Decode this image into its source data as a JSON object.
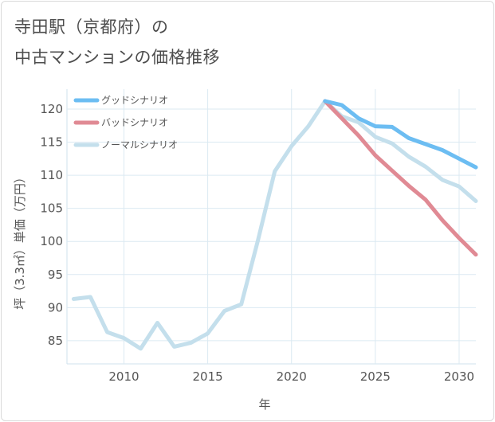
{
  "title_line1": "寺田駅（京都府）の",
  "title_line2": "中古マンションの価格推移",
  "chart_data": {
    "type": "line",
    "xlabel": "年",
    "ylabel": "坪（3.3㎡）単価（万円）",
    "xlim": [
      2006.6,
      2031
    ],
    "ylim": [
      81.5,
      123
    ],
    "xticks": [
      2010,
      2015,
      2020,
      2025,
      2030
    ],
    "yticks": [
      85,
      90,
      95,
      100,
      105,
      110,
      115,
      120
    ],
    "grid": true,
    "legend_position": "top-left",
    "series": [
      {
        "name": "グッドシナリオ",
        "color": "#6cbdf2",
        "x": [
          2022,
          2023,
          2024,
          2025,
          2026,
          2027,
          2028,
          2029,
          2030,
          2031
        ],
        "y": [
          121.2,
          120.6,
          118.6,
          117.4,
          117.3,
          115.6,
          114.7,
          113.8,
          112.5,
          111.2
        ]
      },
      {
        "name": "バッドシナリオ",
        "color": "#e08a94",
        "x": [
          2022,
          2023,
          2024,
          2025,
          2026,
          2027,
          2028,
          2029,
          2030,
          2031
        ],
        "y": [
          121.2,
          118.6,
          116.0,
          113.0,
          110.7,
          108.4,
          106.3,
          103.2,
          100.5,
          98.0
        ]
      },
      {
        "name": "ノーマルシナリオ",
        "color": "#c4dfec",
        "x": [
          2007,
          2008,
          2009,
          2010,
          2011,
          2012,
          2013,
          2014,
          2015,
          2016,
          2017,
          2018,
          2019,
          2020,
          2021,
          2022,
          2023,
          2024,
          2025,
          2026,
          2027,
          2028,
          2029,
          2030,
          2031
        ],
        "y": [
          91.3,
          91.6,
          86.3,
          85.4,
          83.8,
          87.7,
          84.1,
          84.7,
          86.1,
          89.5,
          90.5,
          100.2,
          110.6,
          114.4,
          117.4,
          121.2,
          118.9,
          118.0,
          115.8,
          114.8,
          112.8,
          111.3,
          109.3,
          108.3,
          106.1
        ]
      }
    ]
  }
}
